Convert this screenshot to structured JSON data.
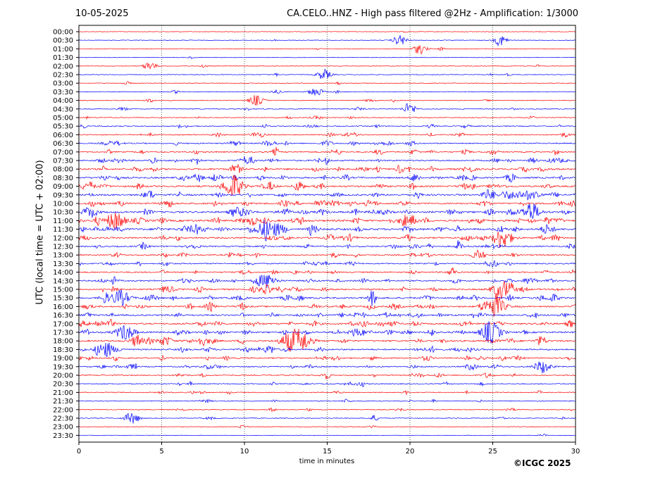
{
  "header": {
    "date": "10-05-2025",
    "title": "CA.CELO..HNZ - High pass filtered @2Hz - Amplification: 1/3000"
  },
  "footer": {
    "copyright": "©ICGC 2025"
  },
  "chart_data": {
    "type": "line",
    "title": "CA.CELO..HNZ - High pass filtered @2Hz - Amplification: 1/3000",
    "xlabel": "time in minutes",
    "ylabel": "UTC (local time = UTC + 02:00)",
    "xlim": [
      0,
      30
    ],
    "x_ticks": [
      0,
      5,
      10,
      15,
      20,
      25,
      30
    ],
    "x_gridlines": [
      5,
      10,
      15,
      20,
      25
    ],
    "grid": "dotted vertical lines at 5-minute intervals",
    "trace_colors": [
      "#ff0000",
      "#0000ff"
    ],
    "row_labels": [
      "00:00",
      "00:30",
      "01:00",
      "01:30",
      "02:00",
      "02:30",
      "03:00",
      "03:30",
      "04:00",
      "04:30",
      "05:00",
      "05:30",
      "06:00",
      "06:30",
      "07:00",
      "07:30",
      "08:00",
      "08:30",
      "09:00",
      "09:30",
      "10:00",
      "10:30",
      "11:00",
      "11:30",
      "12:00",
      "12:30",
      "13:00",
      "13:30",
      "14:00",
      "14:30",
      "15:00",
      "15:30",
      "16:00",
      "16:30",
      "17:00",
      "17:30",
      "18:00",
      "18:30",
      "19:00",
      "19:30",
      "20:00",
      "20:30",
      "21:00",
      "21:30",
      "22:00",
      "22:30",
      "23:00",
      "23:30"
    ],
    "activity": [
      0.02,
      0.05,
      0.06,
      0.03,
      0.06,
      0.08,
      0.06,
      0.08,
      0.1,
      0.14,
      0.16,
      0.22,
      0.28,
      0.35,
      0.4,
      0.48,
      0.55,
      0.55,
      0.58,
      0.62,
      0.6,
      0.66,
      0.72,
      0.75,
      0.5,
      0.45,
      0.38,
      0.35,
      0.4,
      0.48,
      0.5,
      0.55,
      0.52,
      0.55,
      0.58,
      0.55,
      0.55,
      0.5,
      0.4,
      0.35,
      0.28,
      0.25,
      0.2,
      0.16,
      0.15,
      0.12,
      0.06,
      0.02
    ],
    "events": [
      {
        "row": "00:30",
        "x": 19.4,
        "amp": 0.4
      },
      {
        "row": "00:30",
        "x": 25.5,
        "amp": 0.35
      },
      {
        "row": "01:00",
        "x": 20.6,
        "amp": 0.35
      },
      {
        "row": "02:00",
        "x": 4.3,
        "amp": 0.3
      },
      {
        "row": "02:30",
        "x": 14.8,
        "amp": 0.4
      },
      {
        "row": "03:30",
        "x": 14.3,
        "amp": 0.35
      },
      {
        "row": "04:00",
        "x": 10.7,
        "amp": 0.4
      },
      {
        "row": "04:30",
        "x": 20.0,
        "amp": 0.35
      },
      {
        "row": "09:00",
        "x": 9.3,
        "amp": 1.0
      },
      {
        "row": "10:30",
        "x": 27.3,
        "amp": 0.8
      },
      {
        "row": "11:00",
        "x": 2.2,
        "amp": 0.9
      },
      {
        "row": "11:30",
        "x": 11.5,
        "amp": 0.8
      },
      {
        "row": "12:00",
        "x": 25.6,
        "amp": 0.9
      },
      {
        "row": "14:30",
        "x": 11.4,
        "amp": 0.7
      },
      {
        "row": "15:00",
        "x": 25.6,
        "amp": 1.0
      },
      {
        "row": "15:30",
        "x": 2.5,
        "amp": 0.8
      },
      {
        "row": "16:00",
        "x": 25.2,
        "amp": 0.9
      },
      {
        "row": "17:30",
        "x": 2.8,
        "amp": 0.8
      },
      {
        "row": "17:30",
        "x": 24.9,
        "amp": 1.0
      },
      {
        "row": "18:00",
        "x": 12.8,
        "amp": 1.0
      },
      {
        "row": "18:00",
        "x": 13.5,
        "amp": 0.9
      },
      {
        "row": "18:30",
        "x": 1.6,
        "amp": 0.8
      },
      {
        "row": "19:30",
        "x": 28.0,
        "amp": 0.6
      },
      {
        "row": "22:30",
        "x": 3.2,
        "amp": 0.5
      }
    ]
  }
}
